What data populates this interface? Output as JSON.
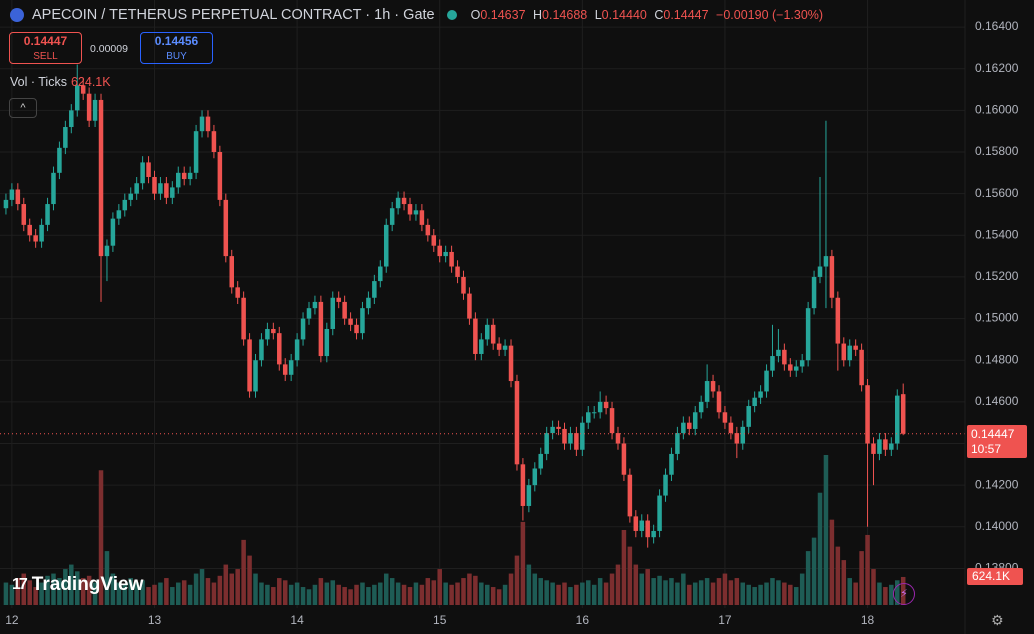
{
  "header": {
    "title": "APECOIN / TETHERUS PERPETUAL CONTRACT · 1h · Gate",
    "o_label": "O",
    "o": "0.14637",
    "h_label": "H",
    "h": "0.14688",
    "l_label": "L",
    "l": "0.14440",
    "c_label": "C",
    "c": "0.14447",
    "change": "−0.00190 (−1.30%)",
    "sell_price": "0.14447",
    "sell_label": "SELL",
    "spread": "0.00009",
    "buy_price": "0.14456",
    "buy_label": "BUY",
    "volume_title": "Vol · Ticks",
    "volume_value": "624.1K",
    "price_label": "0.14447",
    "countdown": "10:57",
    "volume_axis_label": "624.1K",
    "logo": "TradingView"
  },
  "chart_data": {
    "type": "candlestick",
    "colors": {
      "up": "#26a69a",
      "down": "#ef5350",
      "volume_up": "#1e5c55",
      "volume_down": "#7c2e2f"
    },
    "grid": true,
    "xlim": [
      -1,
      161.4
    ],
    "xticks": [
      {
        "value": 1,
        "label": "12"
      },
      {
        "value": 25,
        "label": "13"
      },
      {
        "value": 49,
        "label": "14"
      },
      {
        "value": 73,
        "label": "15"
      },
      {
        "value": 97,
        "label": "16"
      },
      {
        "value": 121,
        "label": "17"
      },
      {
        "value": 145,
        "label": "18"
      }
    ],
    "ylim": [
      0.1361,
      0.1653
    ],
    "yticks": [
      {
        "value": 0.164,
        "label": "0.16400"
      },
      {
        "value": 0.162,
        "label": "0.16200"
      },
      {
        "value": 0.16,
        "label": "0.16000"
      },
      {
        "value": 0.158,
        "label": "0.15800"
      },
      {
        "value": 0.156,
        "label": "0.15600"
      },
      {
        "value": 0.154,
        "label": "0.15400"
      },
      {
        "value": 0.152,
        "label": "0.15200"
      },
      {
        "value": 0.15,
        "label": "0.15000"
      },
      {
        "value": 0.148,
        "label": "0.14800"
      },
      {
        "value": 0.146,
        "label": "0.14600"
      },
      {
        "value": 0.144,
        "label": "0.14400"
      },
      {
        "value": 0.142,
        "label": "0.14200"
      },
      {
        "value": 0.14,
        "label": "0.14000"
      },
      {
        "value": 0.138,
        "label": "0.13800"
      }
    ],
    "last_price": 0.14447,
    "open": [
      0.1553,
      0.1557,
      0.1562,
      0.1555,
      0.1545,
      0.154,
      0.1537,
      0.1545,
      0.1555,
      0.157,
      0.1582,
      0.1592,
      0.16,
      0.1612,
      0.1608,
      0.1595,
      0.1605,
      0.153,
      0.1535,
      0.1548,
      0.1552,
      0.1557,
      0.156,
      0.1565,
      0.1575,
      0.1568,
      0.156,
      0.1565,
      0.1558,
      0.1563,
      0.157,
      0.1567,
      0.157,
      0.159,
      0.1597,
      0.159,
      0.158,
      0.1557,
      0.153,
      0.1515,
      0.151,
      0.149,
      0.1465,
      0.148,
      0.149,
      0.1495,
      0.1493,
      0.1478,
      0.1473,
      0.148,
      0.149,
      0.15,
      0.1505,
      0.1508,
      0.1482,
      0.1495,
      0.151,
      0.1508,
      0.15,
      0.1497,
      0.1493,
      0.1505,
      0.151,
      0.1518,
      0.1525,
      0.1545,
      0.1553,
      0.1558,
      0.1555,
      0.155,
      0.1552,
      0.1545,
      0.154,
      0.1535,
      0.153,
      0.1532,
      0.1525,
      0.152,
      0.1512,
      0.15,
      0.1483,
      0.149,
      0.1497,
      0.1488,
      0.1485,
      0.1487,
      0.147,
      0.143,
      0.141,
      0.142,
      0.1428,
      0.1435,
      0.1445,
      0.1448,
      0.1447,
      0.144,
      0.1445,
      0.1437,
      0.145,
      0.1455,
      0.1455,
      0.146,
      0.1457,
      0.1445,
      0.144,
      0.1425,
      0.1405,
      0.1398,
      0.1403,
      0.1395,
      0.1398,
      0.1415,
      0.1425,
      0.1435,
      0.1445,
      0.145,
      0.1447,
      0.1455,
      0.146,
      0.147,
      0.1465,
      0.1455,
      0.145,
      0.1445,
      0.144,
      0.1448,
      0.1458,
      0.1462,
      0.1465,
      0.1475,
      0.1482,
      0.1485,
      0.1478,
      0.1475,
      0.1477,
      0.148,
      0.1505,
      0.152,
      0.1525,
      0.153,
      0.151,
      0.1488,
      0.148,
      0.1487,
      0.1485,
      0.1468,
      0.144,
      0.1435,
      0.1442,
      0.1437,
      0.144,
      0.14637
    ],
    "high": [
      0.156,
      0.1565,
      0.1565,
      0.1558,
      0.1548,
      0.1543,
      0.1548,
      0.1558,
      0.1573,
      0.1585,
      0.1595,
      0.1603,
      0.1622,
      0.1615,
      0.1611,
      0.1608,
      0.1608,
      0.1538,
      0.1551,
      0.1555,
      0.156,
      0.1563,
      0.1568,
      0.1578,
      0.1578,
      0.1571,
      0.1568,
      0.1568,
      0.1566,
      0.1573,
      0.1573,
      0.1573,
      0.1593,
      0.16,
      0.16,
      0.1593,
      0.1583,
      0.156,
      0.1533,
      0.1518,
      0.1513,
      0.1493,
      0.1483,
      0.1493,
      0.1498,
      0.1498,
      0.1496,
      0.1481,
      0.1483,
      0.1493,
      0.1503,
      0.1508,
      0.1511,
      0.1511,
      0.1498,
      0.1513,
      0.1513,
      0.1511,
      0.1503,
      0.15,
      0.1508,
      0.1513,
      0.1521,
      0.1528,
      0.1548,
      0.1556,
      0.1561,
      0.1561,
      0.1558,
      0.1555,
      0.1555,
      0.1548,
      0.1543,
      0.1538,
      0.1535,
      0.1535,
      0.1528,
      0.1523,
      0.1515,
      0.1503,
      0.1493,
      0.15,
      0.15,
      0.1491,
      0.149,
      0.149,
      0.1473,
      0.1433,
      0.1423,
      0.1431,
      0.1438,
      0.1448,
      0.1451,
      0.1451,
      0.145,
      0.1448,
      0.1448,
      0.1453,
      0.1458,
      0.1458,
      0.1465,
      0.1463,
      0.146,
      0.1448,
      0.1443,
      0.1428,
      0.1408,
      0.1406,
      0.1406,
      0.1401,
      0.1418,
      0.1428,
      0.1438,
      0.1448,
      0.1453,
      0.1453,
      0.1458,
      0.1463,
      0.1478,
      0.1473,
      0.1468,
      0.1458,
      0.1453,
      0.1448,
      0.1451,
      0.1461,
      0.1465,
      0.1468,
      0.1478,
      0.1497,
      0.1495,
      0.1488,
      0.1481,
      0.148,
      0.1483,
      0.1508,
      0.1523,
      0.1568,
      0.1595,
      0.1533,
      0.1513,
      0.1491,
      0.149,
      0.149,
      0.1488,
      0.1471,
      0.1443,
      0.1445,
      0.1445,
      0.1443,
      0.1466,
      0.14688
    ],
    "low": [
      0.155,
      0.1554,
      0.1552,
      0.1542,
      0.1537,
      0.1534,
      0.1534,
      0.1542,
      0.1552,
      0.1567,
      0.1579,
      0.1589,
      0.1597,
      0.1605,
      0.1592,
      0.1592,
      0.1508,
      0.1518,
      0.1532,
      0.1545,
      0.1549,
      0.1554,
      0.1557,
      0.1562,
      0.1565,
      0.1557,
      0.1557,
      0.1555,
      0.1555,
      0.156,
      0.1564,
      0.1564,
      0.1567,
      0.1587,
      0.1587,
      0.1577,
      0.1554,
      0.1527,
      0.1512,
      0.1507,
      0.1487,
      0.1462,
      0.1462,
      0.1477,
      0.1487,
      0.149,
      0.1475,
      0.147,
      0.147,
      0.1477,
      0.1487,
      0.1497,
      0.1502,
      0.1479,
      0.1479,
      0.1492,
      0.1505,
      0.1497,
      0.1494,
      0.149,
      0.149,
      0.1502,
      0.1507,
      0.1515,
      0.1522,
      0.1542,
      0.155,
      0.1552,
      0.1547,
      0.1547,
      0.1542,
      0.1537,
      0.1532,
      0.1527,
      0.1527,
      0.1522,
      0.1517,
      0.1509,
      0.1497,
      0.148,
      0.148,
      0.1487,
      0.1485,
      0.1482,
      0.1482,
      0.1467,
      0.1427,
      0.1403,
      0.1407,
      0.1417,
      0.1425,
      0.1432,
      0.1442,
      0.1444,
      0.1437,
      0.1437,
      0.1434,
      0.1434,
      0.1447,
      0.1452,
      0.1452,
      0.1454,
      0.1442,
      0.1437,
      0.1422,
      0.1402,
      0.1395,
      0.1395,
      0.139,
      0.1392,
      0.1395,
      0.1412,
      0.1422,
      0.1432,
      0.1442,
      0.1444,
      0.1444,
      0.1452,
      0.1457,
      0.1462,
      0.1452,
      0.1447,
      0.1442,
      0.1433,
      0.1437,
      0.1445,
      0.1455,
      0.1459,
      0.1462,
      0.1472,
      0.1479,
      0.1475,
      0.1472,
      0.1472,
      0.1474,
      0.1477,
      0.1502,
      0.1517,
      0.1505,
      0.1505,
      0.1475,
      0.1477,
      0.1477,
      0.1482,
      0.1465,
      0.14,
      0.142,
      0.1432,
      0.1434,
      0.1434,
      0.1437,
      0.1444
    ],
    "close": [
      0.1557,
      0.1562,
      0.1555,
      0.1545,
      0.154,
      0.1537,
      0.1545,
      0.1555,
      0.157,
      0.1582,
      0.1592,
      0.16,
      0.1612,
      0.1608,
      0.1595,
      0.1605,
      0.153,
      0.1535,
      0.1548,
      0.1552,
      0.1557,
      0.156,
      0.1565,
      0.1575,
      0.1568,
      0.156,
      0.1565,
      0.1558,
      0.1563,
      0.157,
      0.1567,
      0.157,
      0.159,
      0.1597,
      0.159,
      0.158,
      0.1557,
      0.153,
      0.1515,
      0.151,
      0.149,
      0.1465,
      0.148,
      0.149,
      0.1495,
      0.1493,
      0.1478,
      0.1473,
      0.148,
      0.149,
      0.15,
      0.1505,
      0.1508,
      0.1482,
      0.1495,
      0.151,
      0.1508,
      0.15,
      0.1497,
      0.1493,
      0.1505,
      0.151,
      0.1518,
      0.1525,
      0.1545,
      0.1553,
      0.1558,
      0.1555,
      0.155,
      0.1552,
      0.1545,
      0.154,
      0.1535,
      0.153,
      0.1532,
      0.1525,
      0.152,
      0.1512,
      0.15,
      0.1483,
      0.149,
      0.1497,
      0.1488,
      0.1485,
      0.1487,
      0.147,
      0.143,
      0.141,
      0.142,
      0.1428,
      0.1435,
      0.1445,
      0.1448,
      0.1447,
      0.144,
      0.1445,
      0.1437,
      0.145,
      0.1455,
      0.1455,
      0.146,
      0.1457,
      0.1445,
      0.144,
      0.1425,
      0.1405,
      0.1398,
      0.1403,
      0.1395,
      0.1398,
      0.1415,
      0.1425,
      0.1435,
      0.1445,
      0.145,
      0.1447,
      0.1455,
      0.146,
      0.147,
      0.1465,
      0.1455,
      0.145,
      0.1445,
      0.144,
      0.1448,
      0.1458,
      0.1462,
      0.1465,
      0.1475,
      0.1482,
      0.1485,
      0.1478,
      0.1475,
      0.1477,
      0.148,
      0.1505,
      0.152,
      0.1525,
      0.153,
      0.151,
      0.1488,
      0.148,
      0.1487,
      0.1485,
      0.1468,
      0.144,
      0.1435,
      0.1442,
      0.1437,
      0.144,
      0.1463,
      0.14447
    ],
    "volume": [
      500,
      450,
      600,
      700,
      550,
      400,
      500,
      650,
      700,
      600,
      800,
      900,
      750,
      600,
      650,
      500,
      3000,
      1200,
      700,
      500,
      450,
      600,
      500,
      550,
      400,
      450,
      500,
      600,
      400,
      500,
      550,
      450,
      700,
      800,
      600,
      500,
      650,
      900,
      700,
      800,
      1450,
      1100,
      700,
      500,
      450,
      400,
      600,
      550,
      450,
      500,
      400,
      350,
      450,
      600,
      500,
      550,
      450,
      400,
      350,
      450,
      500,
      400,
      450,
      500,
      700,
      600,
      500,
      450,
      400,
      500,
      450,
      600,
      550,
      800,
      500,
      450,
      500,
      600,
      700,
      650,
      500,
      450,
      400,
      350,
      450,
      700,
      1100,
      1850,
      900,
      700,
      600,
      550,
      500,
      450,
      500,
      400,
      450,
      500,
      550,
      450,
      600,
      500,
      700,
      900,
      1670,
      1300,
      900,
      700,
      800,
      600,
      650,
      550,
      600,
      500,
      700,
      450,
      500,
      550,
      600,
      500,
      600,
      700,
      550,
      600,
      500,
      450,
      400,
      450,
      500,
      600,
      550,
      500,
      450,
      400,
      700,
      1200,
      1500,
      2500,
      3340,
      1900,
      1300,
      1000,
      600,
      500,
      1200,
      1560,
      800,
      500,
      400,
      450,
      550,
      624.1
    ]
  }
}
